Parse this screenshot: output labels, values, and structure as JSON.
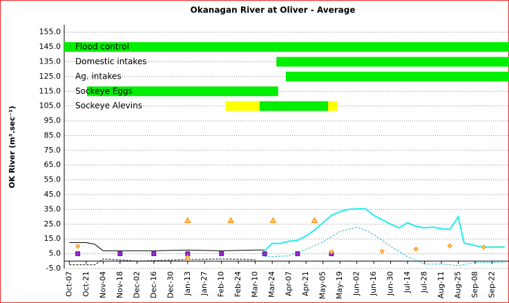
{
  "chart_data": {
    "type": "line",
    "title": "Okanagan River at Oliver - Average",
    "y_label": "OK River (m³.sec⁻¹)",
    "xlim": [
      -0.6,
      52
    ],
    "ylim": [
      -5,
      160
    ],
    "yticks": [
      {
        "value": -5,
        "label": "-5.0"
      },
      {
        "value": 5,
        "label": "5.0"
      },
      {
        "value": 15,
        "label": "15.0"
      },
      {
        "value": 25,
        "label": "25.0"
      },
      {
        "value": 35,
        "label": "35.0"
      },
      {
        "value": 45,
        "label": "45.0"
      },
      {
        "value": 55,
        "label": "55.0"
      },
      {
        "value": 65,
        "label": "65.0"
      },
      {
        "value": 75,
        "label": "75.0"
      },
      {
        "value": 85,
        "label": "85.0"
      },
      {
        "value": 95,
        "label": "95.0"
      },
      {
        "value": 105,
        "label": "105.0"
      },
      {
        "value": 115,
        "label": "115.0"
      },
      {
        "value": 125,
        "label": "125.0"
      },
      {
        "value": 135,
        "label": "135.0"
      },
      {
        "value": 145,
        "label": "145.0"
      },
      {
        "value": 155,
        "label": "155.0"
      }
    ],
    "xticks": [
      {
        "value": 0,
        "label": "Oct-07"
      },
      {
        "value": 2,
        "label": "Oct-21"
      },
      {
        "value": 4,
        "label": "Nov-04"
      },
      {
        "value": 6,
        "label": "Nov-18"
      },
      {
        "value": 8,
        "label": "Dec-02"
      },
      {
        "value": 10,
        "label": "Dec-16"
      },
      {
        "value": 12,
        "label": "Dec-30"
      },
      {
        "value": 14,
        "label": "Jan-13"
      },
      {
        "value": 16,
        "label": "Jan-27"
      },
      {
        "value": 18,
        "label": "Feb-10"
      },
      {
        "value": 20,
        "label": "Feb-24"
      },
      {
        "value": 22,
        "label": "Mar-10"
      },
      {
        "value": 24,
        "label": "Mar-24"
      },
      {
        "value": 26,
        "label": "Apr-07"
      },
      {
        "value": 28,
        "label": "Apr-21"
      },
      {
        "value": 30,
        "label": "May-05"
      },
      {
        "value": 32,
        "label": "May-19"
      },
      {
        "value": 34,
        "label": "Jun-02"
      },
      {
        "value": 36,
        "label": "Jun-16"
      },
      {
        "value": 38,
        "label": "Jun-30"
      },
      {
        "value": 40,
        "label": "Jul-14"
      },
      {
        "value": 42,
        "label": "Jul-28"
      },
      {
        "value": 44,
        "label": "Aug-11"
      },
      {
        "value": 46,
        "label": "Aug-25"
      },
      {
        "value": 48,
        "label": "Sep-08"
      },
      {
        "value": 50,
        "label": "Sep-22"
      }
    ],
    "grid": true,
    "bands": [
      {
        "label": "Flood control",
        "y": 145,
        "segments": [
          {
            "from": -0.6,
            "to": 52,
            "color": "#00ee00"
          }
        ]
      },
      {
        "label": "Domestic intakes",
        "y": 135,
        "segments": [
          {
            "from": 24.5,
            "to": 52,
            "color": "#00ee00"
          }
        ]
      },
      {
        "label": "Ag. intakes",
        "y": 125,
        "segments": [
          {
            "from": 25.6,
            "to": 52,
            "color": "#00ee00"
          }
        ]
      },
      {
        "label": "Sockeye Eggs",
        "y": 115,
        "segments": [
          {
            "from": 2.1,
            "to": 24.7,
            "color": "#00ee00"
          }
        ]
      },
      {
        "label": "Sockeye Alevins",
        "y": 105,
        "segments": [
          {
            "from": 18.5,
            "to": 22.5,
            "color": "#ffff00"
          },
          {
            "from": 22.5,
            "to": 30.6,
            "color": "#00ee00"
          },
          {
            "from": 30.6,
            "to": 31.7,
            "color": "#ffff00"
          }
        ]
      }
    ],
    "series": [
      {
        "color": "#000000",
        "dash": false,
        "x": [
          0,
          2,
          3,
          4,
          10,
          14,
          18,
          22,
          23.1
        ],
        "values": [
          12.5,
          12.5,
          11.5,
          7,
          7,
          7.5,
          7,
          7.5,
          7.5
        ]
      },
      {
        "color": "#000000",
        "dash": true,
        "x": [
          0,
          3,
          4,
          8,
          14,
          18,
          22
        ],
        "values": [
          -2.5,
          -2.5,
          1.5,
          0,
          1,
          1.5,
          1
        ]
      },
      {
        "color": "#22eeee",
        "dash": false,
        "x": [
          23.1,
          24,
          25,
          26,
          27,
          28,
          29,
          30,
          31,
          32,
          33,
          34,
          35,
          36,
          37,
          38,
          39,
          40,
          41,
          42,
          43,
          44,
          45,
          46,
          46.7,
          47,
          48,
          49,
          50,
          51.5
        ],
        "values": [
          7,
          12,
          12,
          13.5,
          14,
          17,
          21,
          26,
          31,
          33.5,
          35,
          35.5,
          35.5,
          31,
          28,
          25,
          22.5,
          26,
          23.5,
          22.5,
          23,
          22,
          21.5,
          30,
          12,
          12,
          10.5,
          9.5,
          9.5,
          9.5
        ]
      },
      {
        "color": "#22bbcc",
        "dash": true,
        "x": [
          23.1,
          26,
          28,
          30,
          32,
          34,
          35,
          36,
          38,
          40,
          42,
          44,
          46,
          48,
          50,
          51.5
        ],
        "values": [
          3,
          3.5,
          8,
          13,
          20,
          23,
          21,
          18,
          10,
          3,
          -2,
          -2,
          -3,
          -1,
          -1,
          -1
        ]
      }
    ],
    "markers": [
      {
        "shape": "square",
        "color": "#9922cc",
        "x": [
          1,
          6,
          10,
          14,
          18,
          23.1,
          27,
          31
        ],
        "values": [
          5,
          5,
          5,
          5,
          5,
          5,
          5,
          5
        ]
      },
      {
        "shape": "triangle",
        "color": "#ff8800",
        "x": [
          14,
          19.1,
          24.1,
          29,
          14
        ],
        "values": [
          27.5,
          27.5,
          27.5,
          27.5,
          2.5
        ]
      },
      {
        "shape": "diamond",
        "color": "#ff8800",
        "x": [
          1,
          31,
          37,
          41,
          45,
          49
        ],
        "values": [
          10,
          6.2,
          6.7,
          8.1,
          10.4,
          9.5
        ]
      }
    ]
  }
}
